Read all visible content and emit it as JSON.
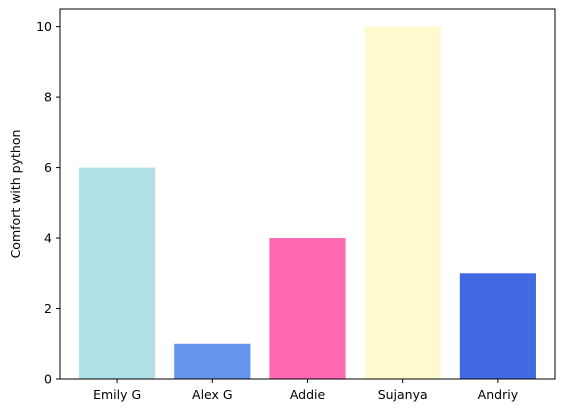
{
  "chart_data": {
    "type": "bar",
    "categories": [
      "Emily G",
      "Alex G",
      "Addie",
      "Sujanya",
      "Andriy"
    ],
    "values": [
      6,
      1,
      4,
      10,
      3
    ],
    "colors": [
      "#b0e0e6",
      "#6495ed",
      "#ff69b4",
      "#fffacd",
      "#4169e1"
    ],
    "title": "",
    "xlabel": "",
    "ylabel": "Comfort with python",
    "ylim": [
      0,
      10.5
    ],
    "yticks": [
      0,
      2,
      4,
      6,
      8,
      10
    ],
    "grid": false,
    "legend": "none"
  }
}
